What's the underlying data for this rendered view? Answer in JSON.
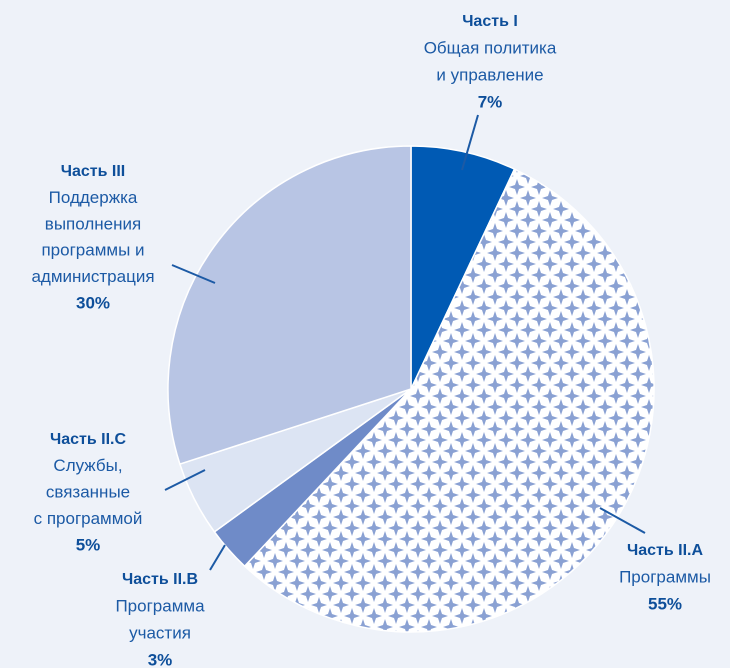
{
  "chart_data": {
    "type": "pie",
    "categories": [
      "Часть I",
      "Часть II.A",
      "Часть II.B",
      "Часть II.C",
      "Часть III"
    ],
    "descriptions": [
      [
        "Общая политика",
        "и управление"
      ],
      [
        "Программы"
      ],
      [
        "Программа",
        "участия"
      ],
      [
        "Службы,",
        "связанные",
        "с программой"
      ],
      [
        "Поддержка",
        "выполнения",
        "программы и",
        "администрация"
      ]
    ],
    "values": [
      7,
      55,
      3,
      5,
      30
    ],
    "value_labels": [
      "7%",
      "55%",
      "3%",
      "5%",
      "30%"
    ],
    "colors": [
      "#005ab4",
      "pattern",
      "#6f8bc8",
      "#dce4f3",
      "#b8c5e4"
    ]
  }
}
